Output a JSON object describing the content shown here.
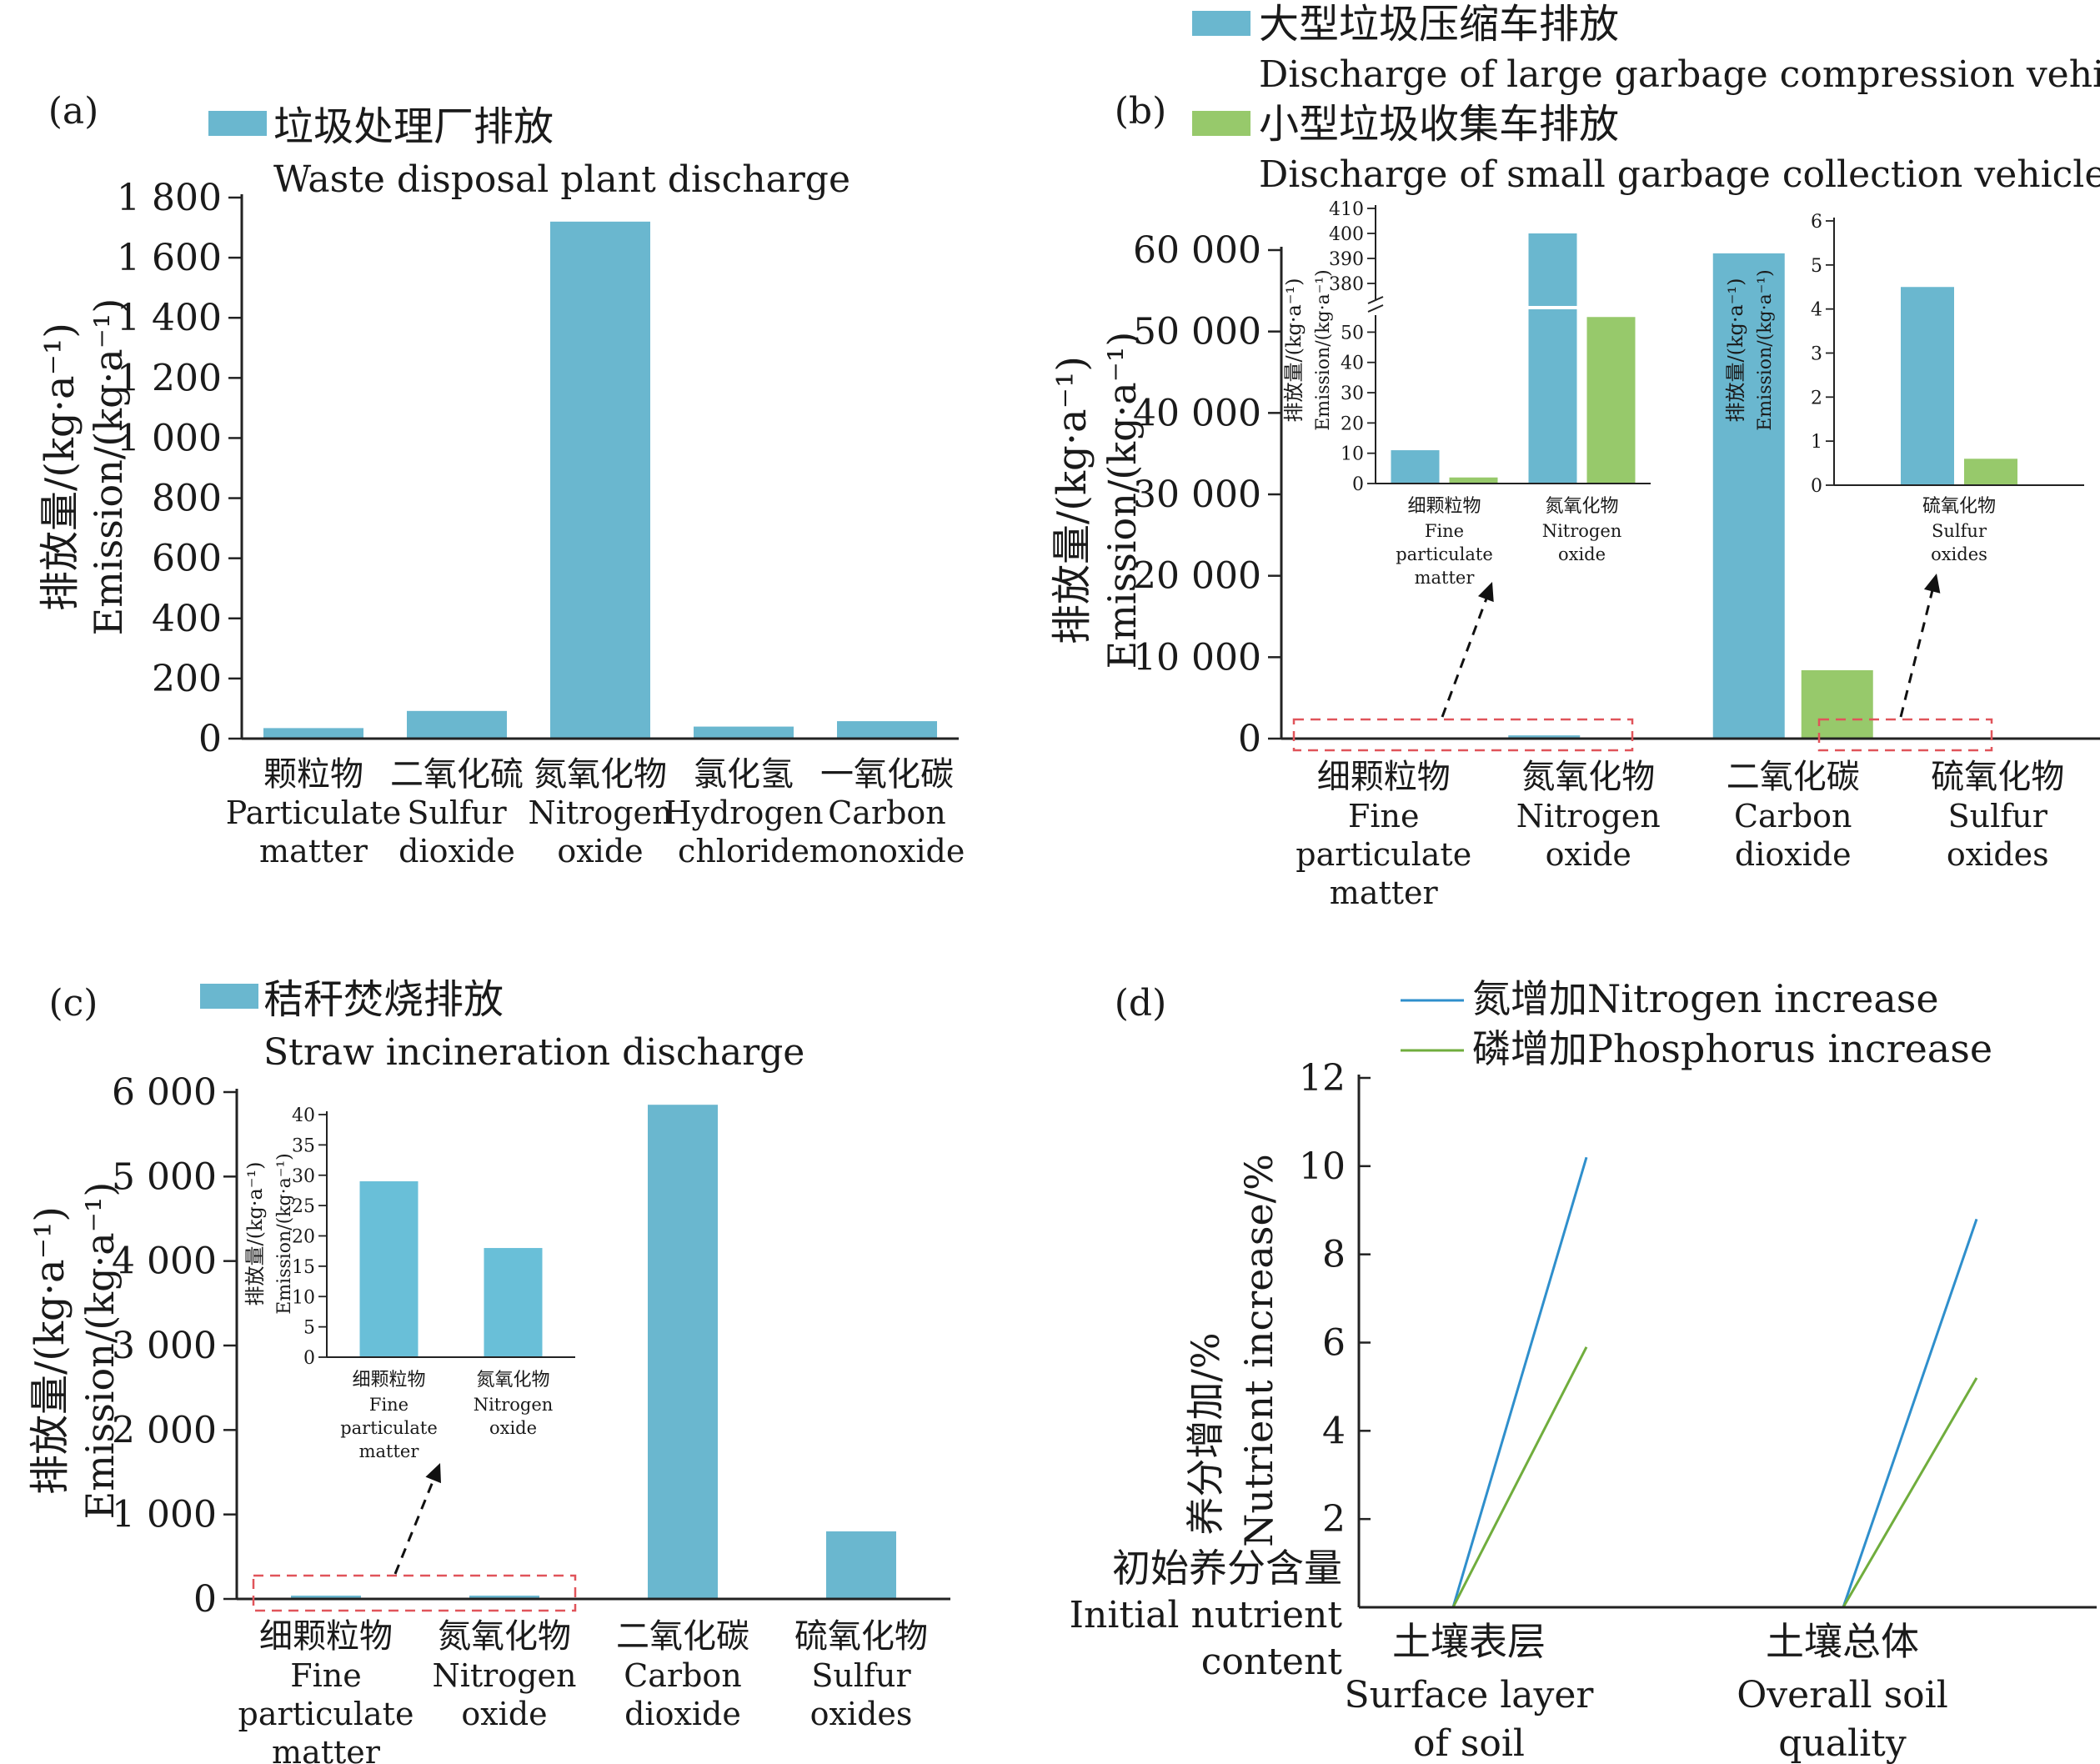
{
  "colors": {
    "blue": "#6ab7cf",
    "inset_blue": "#69bfd8",
    "green": "#97c96b",
    "line_blue": "#2f8fcc",
    "line_green": "#70ad3d",
    "dashed_box": "#e0545a"
  },
  "chart_data": [
    {
      "panel_label": "(a)",
      "type": "bar",
      "categories": [
        {
          "zh": "颗粒物",
          "en": [
            "Particulate",
            "matter"
          ]
        },
        {
          "zh": "二氧化硫",
          "en": [
            "Sulfur",
            "dioxide"
          ]
        },
        {
          "zh": "氮氧化物",
          "en": [
            "Nitrogen",
            "oxide"
          ]
        },
        {
          "zh": "氯化氢",
          "en": [
            "Hydrogen",
            "chloride"
          ]
        },
        {
          "zh": "一氧化碳",
          "en": [
            "Carbon",
            "monoxide"
          ]
        }
      ],
      "series": [
        {
          "name_zh": "垃圾处理厂排放",
          "name_en": "Waste disposal plant discharge",
          "color": "#6ab7cf",
          "values": [
            35,
            92,
            1720,
            40,
            58
          ]
        }
      ],
      "ylabel_zh": "排放量/(kg·a⁻¹)",
      "ylabel_en": "Emission/(kg·a⁻¹)",
      "ylim": [
        0,
        1800
      ],
      "yticks": [
        0,
        200,
        400,
        600,
        800,
        1000,
        1200,
        1400,
        1600,
        1800
      ],
      "ytick_labels": [
        "0",
        "200",
        "400",
        "600",
        "800",
        "1 000",
        "1 200",
        "1 400",
        "1 600",
        "1 800"
      ],
      "legend": "top-left"
    },
    {
      "panel_label": "(b)",
      "type": "bar",
      "categories": [
        {
          "zh": "细颗粒物",
          "en": [
            "Fine",
            "particulate",
            "matter"
          ]
        },
        {
          "zh": "氮氧化物",
          "en": [
            "Nitrogen",
            "oxide"
          ]
        },
        {
          "zh": "二氧化碳",
          "en": [
            "Carbon",
            "dioxide"
          ]
        },
        {
          "zh": "硫氧化物",
          "en": [
            "Sulfur",
            "oxides"
          ]
        }
      ],
      "series": [
        {
          "name_zh": "大型垃圾压缩车排放",
          "name_en": "Discharge of large garbage compression vehicle",
          "color": "#6ab7cf",
          "values": [
            11,
            400,
            59600,
            4.5
          ]
        },
        {
          "name_zh": "小型垃圾收集车排放",
          "name_en": "Discharge of small garbage collection vehicle",
          "color": "#97c96b",
          "values": [
            2,
            55,
            8400,
            0.6
          ]
        }
      ],
      "ylabel_zh": "排放量/(kg·a⁻¹)",
      "ylabel_en": "Emission/(kg·a⁻¹)",
      "ylim": [
        0,
        60000
      ],
      "yticks": [
        0,
        10000,
        20000,
        30000,
        40000,
        50000,
        60000
      ],
      "ytick_labels": [
        "0",
        "10 000",
        "20 000",
        "30 000",
        "40 000",
        "50 000",
        "60 000"
      ],
      "legend": "top",
      "insets": [
        {
          "categories": [
            {
              "zh": "细颗粒物",
              "en": [
                "Fine",
                "particulate",
                "matter"
              ]
            },
            {
              "zh": "氮氧化物",
              "en": [
                "Nitrogen",
                "oxide"
              ]
            }
          ],
          "values_blue": [
            11,
            400
          ],
          "values_green": [
            2,
            55
          ],
          "broken_axis": true,
          "lower_ticks": [
            0,
            10,
            20,
            30,
            40,
            50
          ],
          "upper_ticks": [
            380,
            390,
            400,
            410
          ],
          "ylabel_zh": "排放量/(kg·a⁻¹)",
          "ylabel_en": "Emission/(kg·a⁻¹)"
        },
        {
          "categories": [
            {
              "zh": "硫氧化物",
              "en": [
                "Sulfur",
                "oxides"
              ]
            }
          ],
          "values_blue": [
            4.5
          ],
          "values_green": [
            0.6
          ],
          "ylim": [
            0,
            6
          ],
          "yticks": [
            0,
            1,
            2,
            3,
            4,
            5,
            6
          ],
          "ylabel_zh": "排放量/(kg·a⁻¹)",
          "ylabel_en": "Emission/(kg·a⁻¹)"
        }
      ]
    },
    {
      "panel_label": "(c)",
      "type": "bar",
      "categories": [
        {
          "zh": "细颗粒物",
          "en": [
            "Fine",
            "particulate",
            "matter"
          ]
        },
        {
          "zh": "氮氧化物",
          "en": [
            "Nitrogen",
            "oxide"
          ]
        },
        {
          "zh": "二氧化碳",
          "en": [
            "Carbon",
            "dioxide"
          ]
        },
        {
          "zh": "硫氧化物",
          "en": [
            "Sulfur",
            "oxides"
          ]
        }
      ],
      "series": [
        {
          "name_zh": "秸秆焚烧排放",
          "name_en": "Straw incineration discharge",
          "color": "#6ab7cf",
          "values": [
            29,
            18,
            5850,
            800
          ]
        }
      ],
      "ylabel_zh": "排放量/(kg·a⁻¹)",
      "ylabel_en": "Emission/(kg·a⁻¹)",
      "ylim": [
        0,
        6000
      ],
      "yticks": [
        0,
        1000,
        2000,
        3000,
        4000,
        5000,
        6000
      ],
      "ytick_labels": [
        "0",
        "1 000",
        "2 000",
        "3 000",
        "4 000",
        "5 000",
        "6 000"
      ],
      "legend": "top-left",
      "insets": [
        {
          "categories": [
            {
              "zh": "细颗粒物",
              "en": [
                "Fine",
                "particulate",
                "matter"
              ]
            },
            {
              "zh": "氮氧化物",
              "en": [
                "Nitrogen",
                "oxide"
              ]
            }
          ],
          "values": [
            29,
            18
          ],
          "ylim": [
            0,
            40
          ],
          "yticks": [
            0,
            5,
            10,
            15,
            20,
            25,
            30,
            35,
            40
          ],
          "ylabel_zh": "排放量/(kg·a⁻¹)",
          "ylabel_en": "Emission/(kg·a⁻¹)"
        }
      ]
    },
    {
      "panel_label": "(d)",
      "type": "line",
      "groups": [
        {
          "zh": "土壤表层",
          "en": [
            "Surface layer",
            "of soil"
          ]
        },
        {
          "zh": "土壤总体",
          "en": [
            "Overall soil",
            "quality"
          ]
        }
      ],
      "series": [
        {
          "name": "氮增加Nitrogen increase",
          "color": "#2f8fcc",
          "values": [
            10.2,
            8.8
          ]
        },
        {
          "name": "磷增加Phosphorus increase",
          "color": "#70ad3d",
          "values": [
            5.9,
            5.2
          ]
        }
      ],
      "baseline_label_zh": "初始养分含量",
      "baseline_label_en": [
        "Initial nutrient",
        "content"
      ],
      "ylabel_zh": "养分增加/%",
      "ylabel_en": "Nutrient increase/%",
      "ylim": [
        0,
        12
      ],
      "yticks": [
        2,
        4,
        6,
        8,
        10,
        12
      ],
      "legend": "top"
    }
  ]
}
